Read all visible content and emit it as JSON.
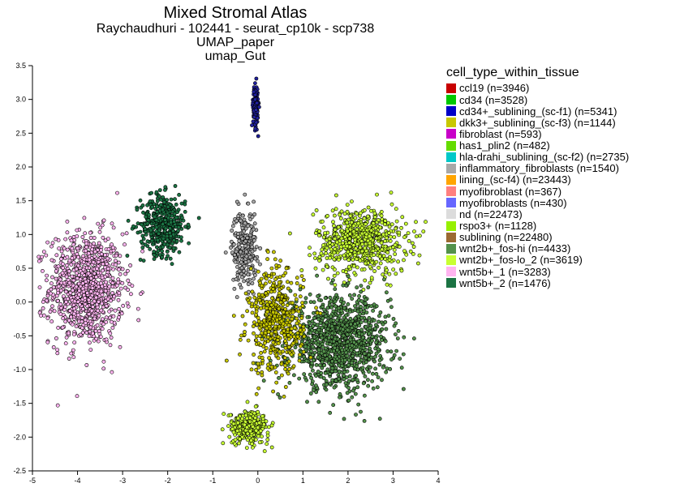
{
  "chart_data": {
    "type": "scatter",
    "title": "Mixed Stromal Atlas",
    "subtitles": [
      "Raychaudhuri - 102441 - seurat_cp10k - scp738",
      "UMAP_paper",
      "umap_Gut"
    ],
    "xlabel": "",
    "ylabel": "",
    "xlim": [
      -5,
      4
    ],
    "ylim": [
      -2.5,
      3.5
    ],
    "xticks": [
      "-5",
      "-4",
      "-3",
      "-2",
      "-1",
      "0",
      "1",
      "2",
      "3",
      "4"
    ],
    "yticks": [
      "3.5",
      "3.0",
      "2.5",
      "2.0",
      "1.5",
      "1.0",
      "0.5",
      "0.0",
      "-0.5",
      "-1.0",
      "-1.5",
      "-2.0",
      "-2.5"
    ],
    "legend_title": "cell_type_within_tissue",
    "legend_position": "right",
    "point_outline_color": "#000000",
    "legend": [
      {
        "label": "ccl19 (n=3946)",
        "color": "#c80000"
      },
      {
        "label": "cd34 (n=3528)",
        "color": "#00c800"
      },
      {
        "label": "cd34+_sublining_(sc-f1) (n=5341)",
        "color": "#0000c8"
      },
      {
        "label": "dkk3+_sublining_(sc-f3) (n=1144)",
        "color": "#c8c800"
      },
      {
        "label": "fibroblast (n=593)",
        "color": "#c800c8"
      },
      {
        "label": "has1_plin2 (n=482)",
        "color": "#64dc00"
      },
      {
        "label": "hla-drahi_sublining_(sc-f2) (n=2735)",
        "color": "#00c8c8"
      },
      {
        "label": "inflammatory_fibroblasts (n=1540)",
        "color": "#a8a8a8"
      },
      {
        "label": "lining_(sc-f4) (n=23443)",
        "color": "#ffa500"
      },
      {
        "label": "myofibroblast (n=367)",
        "color": "#ff7f7f"
      },
      {
        "label": "myofibroblasts (n=430)",
        "color": "#6666ff"
      },
      {
        "label": "nd (n=22473)",
        "color": "#dcdcdc"
      },
      {
        "label": "rspo3+ (n=1128)",
        "color": "#96f000"
      },
      {
        "label": "sublining (n=22480)",
        "color": "#9b6932"
      },
      {
        "label": "wnt2b+_fos-hi (n=4433)",
        "color": "#53914b"
      },
      {
        "label": "wnt2b+_fos-lo_2 (n=3619)",
        "color": "#c8ff32"
      },
      {
        "label": "wnt5b+_1 (n=3283)",
        "color": "#ffb4f0"
      },
      {
        "label": "wnt5b+_2 (n=1476)",
        "color": "#1b7343"
      }
    ],
    "clusters": [
      {
        "name": "wnt5b+_1",
        "color": "#ffb4f0",
        "center": [
          -3.8,
          0.2
        ],
        "spread": [
          0.75,
          0.75
        ],
        "n": 950
      },
      {
        "name": "wnt5b+_2",
        "color": "#1b7343",
        "center": [
          -2.1,
          1.15
        ],
        "spread": [
          0.45,
          0.4
        ],
        "n": 430
      },
      {
        "name": "cd34+_sublining_(sc-f1)",
        "color": "#2020a0",
        "center": [
          -0.05,
          2.9
        ],
        "spread": [
          0.05,
          0.28
        ],
        "n": 160
      },
      {
        "name": "inflammatory_fibroblasts",
        "color": "#a8a8a8",
        "center": [
          -0.3,
          0.8
        ],
        "spread": [
          0.25,
          0.5
        ],
        "n": 260
      },
      {
        "name": "wnt2b+_fos-lo_2",
        "color": "#c8ff32",
        "center": [
          2.3,
          0.9
        ],
        "spread": [
          0.9,
          0.45
        ],
        "n": 650
      },
      {
        "name": "wnt2b+_fos-hi",
        "color": "#53914b",
        "center": [
          1.8,
          -0.6
        ],
        "spread": [
          1.0,
          0.6
        ],
        "n": 1100
      },
      {
        "name": "dkk3+_sublining_(sc-f3)",
        "color": "#c8c800",
        "center": [
          0.4,
          -0.3
        ],
        "spread": [
          0.55,
          0.7
        ],
        "n": 500
      },
      {
        "name": "wnt2b+_fos-lo_2",
        "color": "#c8ff32",
        "center": [
          -0.2,
          -1.85
        ],
        "spread": [
          0.4,
          0.22
        ],
        "n": 280
      }
    ]
  }
}
